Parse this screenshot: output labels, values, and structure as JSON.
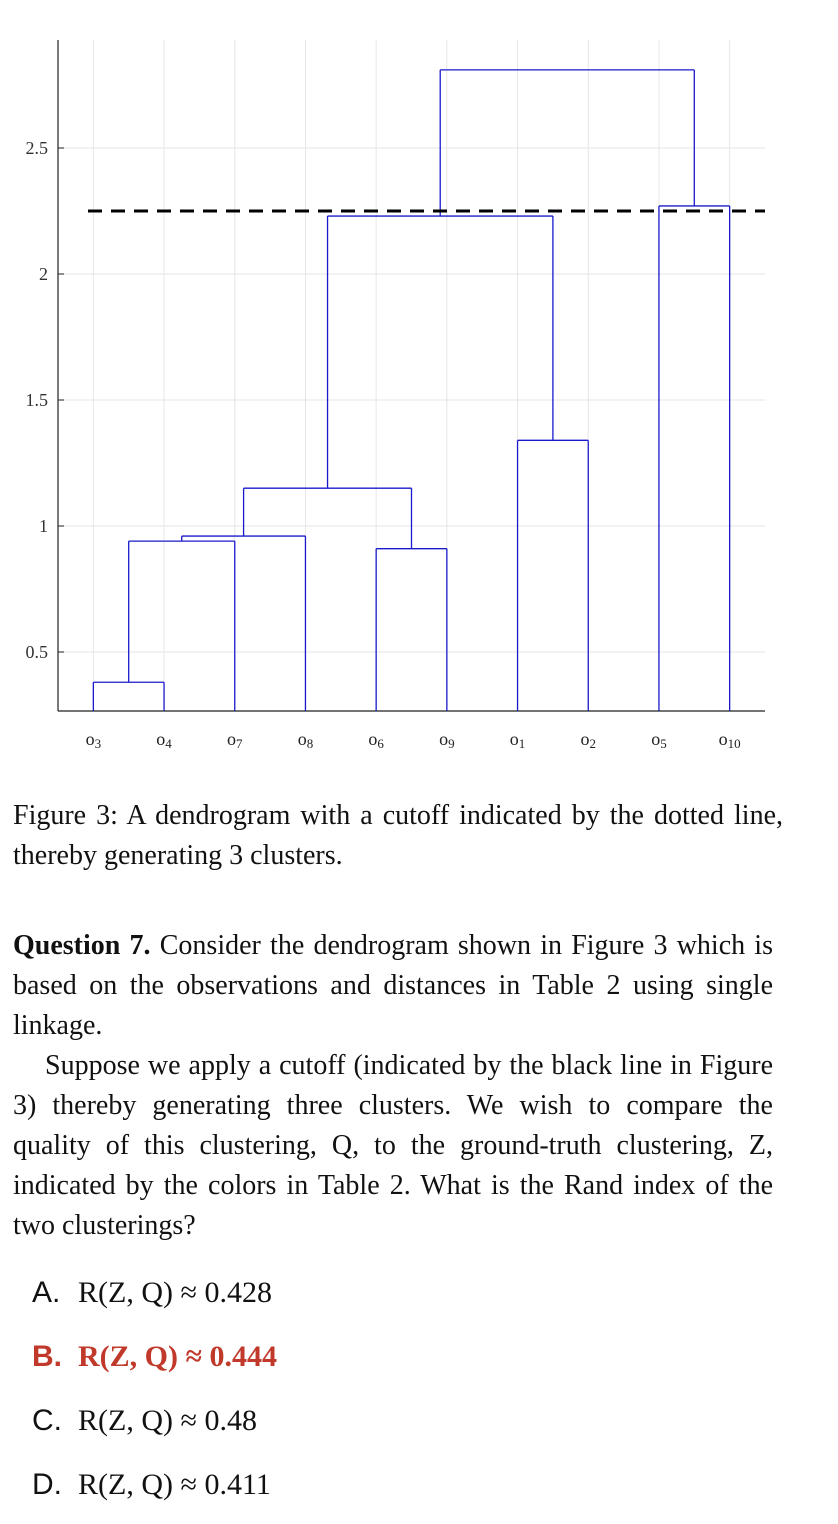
{
  "chart_data": {
    "type": "dendrogram",
    "yticks": [
      "0.5",
      "1",
      "1.5",
      "2",
      "2.5"
    ],
    "ytick_values": [
      0.5,
      1,
      1.5,
      2,
      2.5
    ],
    "ylim": [
      0.27,
      2.93
    ],
    "grid": true,
    "leaves": [
      {
        "base": "o",
        "sub": "3"
      },
      {
        "base": "o",
        "sub": "4"
      },
      {
        "base": "o",
        "sub": "7"
      },
      {
        "base": "o",
        "sub": "8"
      },
      {
        "base": "o",
        "sub": "6"
      },
      {
        "base": "o",
        "sub": "9"
      },
      {
        "base": "o",
        "sub": "1"
      },
      {
        "base": "o",
        "sub": "2"
      },
      {
        "base": "o",
        "sub": "5"
      },
      {
        "base": "o",
        "sub": "10"
      }
    ],
    "merges": [
      {
        "left": "o3",
        "right": "o4",
        "height": 0.38
      },
      {
        "left": "o3,o4",
        "right": "o7",
        "height": 0.94
      },
      {
        "left": "o3,o4,o7",
        "right": "o8",
        "height": 0.96
      },
      {
        "left": "o6",
        "right": "o9",
        "height": 0.91
      },
      {
        "left": "o3,o4,o7,o8",
        "right": "o6,o9",
        "height": 1.15
      },
      {
        "left": "o1",
        "right": "o2",
        "height": 1.34
      },
      {
        "left": "o3,o4,o7,o8,o6,o9",
        "right": "o1,o2",
        "height": 2.23
      },
      {
        "left": "o5",
        "right": "o10",
        "height": 2.27
      },
      {
        "left": "o3,o4,o7,o8,o6,o9,o1,o2",
        "right": "o5,o10",
        "height": 2.81
      }
    ],
    "cutoff": 2.25,
    "line_color": "#1a1acc"
  },
  "caption": "Figure 3: A dendrogram with a cutoff indicated by the dotted line, thereby generating 3 clusters.",
  "question": {
    "lead": "Question 7.",
    "p1": " Consider the dendrogram shown in Figure 3 which is based on the observations and distances in Table 2 using single linkage.",
    "p2": "Suppose we apply a cutoff (indicated by the black line in Figure 3) thereby generating three clusters. We wish to compare the quality of this clustering, Q, to the ground-truth clustering, Z, indicated by the colors in Table 2. What is the Rand index of the two clusterings?"
  },
  "answers": [
    {
      "letter": "A.",
      "text": "R(Z, Q) ≈ 0.428",
      "correct": false
    },
    {
      "letter": "B.",
      "text": "R(Z, Q) ≈ 0.444",
      "correct": true
    },
    {
      "letter": "C.",
      "text": "R(Z, Q) ≈ 0.48",
      "correct": false
    },
    {
      "letter": "D.",
      "text": "R(Z, Q) ≈ 0.411",
      "correct": false
    }
  ],
  "colors": {
    "correct": "#c0392b",
    "tree": "#1a1acc"
  }
}
